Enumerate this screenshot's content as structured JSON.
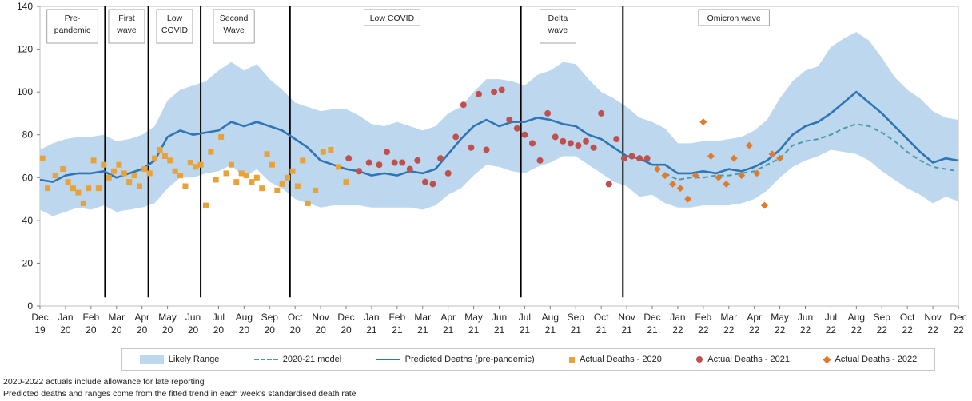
{
  "chart_data": {
    "type": "line",
    "ylim": [
      0,
      140
    ],
    "yticks": [
      0,
      20,
      40,
      60,
      80,
      100,
      120,
      140
    ],
    "x_tick_labels": [
      [
        "Dec",
        "19"
      ],
      [
        "Jan",
        "20"
      ],
      [
        "Feb",
        "20"
      ],
      [
        "Mar",
        "20"
      ],
      [
        "Apr",
        "20"
      ],
      [
        "May",
        "20"
      ],
      [
        "Jun",
        "20"
      ],
      [
        "Jul",
        "20"
      ],
      [
        "Aug",
        "20"
      ],
      [
        "Sep",
        "20"
      ],
      [
        "Oct",
        "20"
      ],
      [
        "Nov",
        "20"
      ],
      [
        "Dec",
        "20"
      ],
      [
        "Jan",
        "21"
      ],
      [
        "Feb",
        "21"
      ],
      [
        "Mar",
        "21"
      ],
      [
        "Apr",
        "21"
      ],
      [
        "May",
        "21"
      ],
      [
        "Jun",
        "21"
      ],
      [
        "Jul",
        "21"
      ],
      [
        "Aug",
        "21"
      ],
      [
        "Sep",
        "21"
      ],
      [
        "Oct",
        "21"
      ],
      [
        "Nov",
        "21"
      ],
      [
        "Dec",
        "21"
      ],
      [
        "Jan",
        "22"
      ],
      [
        "Feb",
        "22"
      ],
      [
        "Mar",
        "22"
      ],
      [
        "Apr",
        "22"
      ],
      [
        "May",
        "22"
      ],
      [
        "Jun",
        "22"
      ],
      [
        "Jul",
        "22"
      ],
      [
        "Aug",
        "22"
      ],
      [
        "Sep",
        "22"
      ],
      [
        "Oct",
        "22"
      ],
      [
        "Nov",
        "22"
      ],
      [
        "Dec",
        "22"
      ]
    ],
    "grid": false,
    "legend_position": "bottom",
    "legend": [
      "Likely Range",
      "2020-21 model",
      "Predicted Deaths (pre-pandemic)",
      "Actual Deaths - 2020",
      "Actual Deaths - 2021",
      "Actual Deaths - 2022"
    ],
    "x_index_note": "x values are month indices: 0 = Dec 19, 36 = Dec 22",
    "phase_dividers": [
      2.55,
      4.25,
      6.3,
      9.8,
      18.85,
      22.85
    ],
    "phases": [
      {
        "label": [
          "Pre-",
          "pandemic"
        ],
        "x": 1.27
      },
      {
        "label": [
          "First",
          "wave"
        ],
        "x": 3.4
      },
      {
        "label": [
          "Low",
          "COVID"
        ],
        "x": 5.28
      },
      {
        "label": [
          "Second",
          "Wave"
        ],
        "x": 7.6
      },
      {
        "label": [
          "Low COVID"
        ],
        "x": 13.8
      },
      {
        "label": [
          "Delta",
          "wave"
        ],
        "x": 20.3
      },
      {
        "label": [
          "Omicron wave"
        ],
        "x": 27.2
      }
    ],
    "series": [
      {
        "name": "Likely Range",
        "kind": "band",
        "color": "#bdd7ee",
        "x": [
          0,
          0.5,
          1,
          1.5,
          2,
          2.5,
          3,
          3.5,
          4,
          4.5,
          5,
          5.5,
          6,
          6.5,
          7,
          7.5,
          8,
          8.5,
          9,
          9.5,
          10,
          10.5,
          11,
          11.5,
          12,
          12.5,
          13,
          13.5,
          14,
          14.5,
          15,
          15.5,
          16,
          16.5,
          17,
          17.5,
          18,
          18.5,
          19,
          19.5,
          20,
          20.5,
          21,
          21.5,
          22,
          22.5,
          23,
          23.5,
          24,
          24.5,
          25,
          25.5,
          26,
          26.5,
          27,
          27.5,
          28,
          28.5,
          29,
          29.5,
          30,
          30.5,
          31,
          31.5,
          32,
          32.5,
          33,
          33.5,
          34,
          34.5,
          35,
          35.5,
          36
        ],
        "upper": [
          73,
          76,
          78,
          79,
          79,
          80,
          77,
          78,
          80,
          84,
          96,
          101,
          103,
          105,
          110,
          114,
          110,
          113,
          106,
          101,
          95,
          93,
          91,
          92,
          92,
          89,
          85,
          84,
          86,
          84,
          82,
          84,
          90,
          93,
          100,
          106,
          106,
          105,
          103,
          108,
          110,
          114,
          113,
          106,
          100,
          97,
          93,
          88,
          86,
          83,
          76,
          76,
          77,
          77,
          78,
          79,
          82,
          87,
          97,
          105,
          110,
          112,
          121,
          125,
          128,
          124,
          116,
          107,
          101,
          97,
          91,
          88,
          87
        ],
        "lower": [
          45,
          42,
          44,
          46,
          45,
          47,
          44,
          45,
          46,
          48,
          55,
          60,
          60,
          62,
          63,
          66,
          60,
          64,
          58,
          55,
          50,
          48,
          46,
          47,
          47,
          47,
          46,
          46,
          46,
          46,
          45,
          47,
          52,
          55,
          61,
          66,
          65,
          63,
          62,
          65,
          67,
          70,
          70,
          66,
          62,
          58,
          56,
          51,
          52,
          48,
          46,
          46,
          47,
          47,
          47,
          48,
          50,
          54,
          60,
          65,
          68,
          70,
          73,
          72,
          71,
          68,
          63,
          59,
          55,
          52,
          48,
          51,
          49
        ]
      },
      {
        "name": "Predicted Deaths (pre-pandemic)",
        "kind": "line",
        "color": "#2e75b6",
        "x": [
          0,
          0.5,
          1,
          1.5,
          2,
          2.5,
          3,
          3.5,
          4,
          4.5,
          5,
          5.5,
          6,
          6.5,
          7,
          7.5,
          8,
          8.5,
          9,
          9.5,
          10,
          10.5,
          11,
          11.5,
          12,
          12.5,
          13,
          13.5,
          14,
          14.5,
          15,
          15.5,
          16,
          16.5,
          17,
          17.5,
          18,
          18.5,
          19,
          19.5,
          20,
          20.5,
          21,
          21.5,
          22,
          22.5,
          23,
          23.5,
          24,
          24.5,
          25,
          25.5,
          26,
          26.5,
          27,
          27.5,
          28,
          28.5,
          29,
          29.5,
          30,
          30.5,
          31,
          31.5,
          32,
          32.5,
          33,
          33.5,
          34,
          34.5,
          35,
          35.5,
          36
        ],
        "values": [
          59,
          58,
          61,
          62,
          62,
          63,
          60,
          62,
          64,
          68,
          79,
          82,
          80,
          81,
          82,
          86,
          84,
          86,
          84,
          82,
          78,
          74,
          68,
          66,
          64,
          63,
          61,
          62,
          61,
          63,
          62,
          64,
          71,
          78,
          84,
          87,
          84,
          86,
          86,
          88,
          87,
          85,
          84,
          80,
          78,
          74,
          70,
          69,
          66,
          66,
          62,
          62,
          63,
          62,
          64,
          63,
          65,
          68,
          73,
          80,
          84,
          86,
          90,
          95,
          100,
          95,
          90,
          84,
          78,
          72,
          67,
          69,
          68
        ]
      },
      {
        "name": "2020-21 model",
        "kind": "dashed",
        "color": "#4a9aa8",
        "x": [
          24.5,
          25,
          25.5,
          26,
          26.5,
          27,
          27.5,
          28,
          28.5,
          29,
          29.5,
          30,
          30.5,
          31,
          31.5,
          32,
          32.5,
          33,
          33.5,
          34,
          34.5,
          35,
          35.5,
          36
        ],
        "values": [
          62,
          59,
          60,
          60,
          61,
          61,
          62,
          63,
          66,
          69,
          75,
          77,
          78,
          80,
          83,
          85,
          84,
          81,
          77,
          72,
          68,
          65,
          64,
          63
        ]
      },
      {
        "name": "Actual Deaths - 2020",
        "kind": "square",
        "color": "#e8a23a",
        "x": [
          0.1,
          0.3,
          0.6,
          0.9,
          1.1,
          1.3,
          1.5,
          1.7,
          1.9,
          2.1,
          2.3,
          2.5,
          2.7,
          2.9,
          3.1,
          3.3,
          3.5,
          3.7,
          3.9,
          4.1,
          4.3,
          4.5,
          4.7,
          4.9,
          5.1,
          5.3,
          5.5,
          5.7,
          5.9,
          6.1,
          6.3,
          6.5,
          6.7,
          6.9,
          7.1,
          7.3,
          7.5,
          7.7,
          7.9,
          8.1,
          8.3,
          8.5,
          8.7,
          8.9,
          9.1,
          9.3,
          9.5,
          9.7,
          9.9,
          10.1,
          10.3,
          10.5,
          10.8,
          11.1,
          11.4,
          11.7,
          12
        ],
        "values": [
          69,
          55,
          61,
          64,
          58,
          55,
          53,
          48,
          55,
          68,
          55,
          66,
          60,
          63,
          66,
          62,
          58,
          61,
          56,
          64,
          62,
          69,
          73,
          70,
          68,
          63,
          61,
          56,
          67,
          65,
          66,
          47,
          72,
          59,
          79,
          62,
          66,
          58,
          62,
          61,
          58,
          60,
          55,
          71,
          66,
          54,
          57,
          60,
          63,
          56,
          68,
          48,
          54,
          72,
          73,
          65,
          58
        ]
      },
      {
        "name": "Actual Deaths - 2021",
        "kind": "circle",
        "color": "#c0504d",
        "x": [
          12.1,
          12.5,
          12.9,
          13.3,
          13.6,
          13.9,
          14.2,
          14.5,
          14.8,
          15.1,
          15.4,
          15.7,
          16,
          16.3,
          16.6,
          16.9,
          17.2,
          17.5,
          17.8,
          18.1,
          18.4,
          18.7,
          19,
          19.3,
          19.6,
          19.9,
          20.2,
          20.5,
          20.8,
          21.1,
          21.4,
          21.7,
          22,
          22.3,
          22.6,
          22.9,
          23.2,
          23.5,
          23.8
        ],
        "values": [
          69,
          63,
          67,
          66,
          72,
          67,
          67,
          64,
          68,
          58,
          57,
          69,
          62,
          79,
          94,
          74,
          99,
          73,
          100,
          101,
          87,
          83,
          80,
          76,
          68,
          90,
          79,
          77,
          76,
          75,
          77,
          74,
          90,
          57,
          78,
          69,
          70,
          69,
          69
        ]
      },
      {
        "name": "Actual Deaths - 2022",
        "kind": "diamond",
        "color": "#e07a2c",
        "x": [
          24.2,
          24.5,
          24.8,
          25.1,
          25.4,
          25.7,
          26,
          26.3,
          26.6,
          26.9,
          27.2,
          27.5,
          27.8,
          28.1,
          28.4,
          28.7,
          29
        ],
        "values": [
          64,
          61,
          57,
          55,
          50,
          61,
          86,
          70,
          60,
          57,
          69,
          61,
          75,
          62,
          47,
          71,
          69
        ]
      }
    ]
  },
  "legend": {
    "band_label": "Likely Range",
    "model_label": "2020-21 model",
    "predicted_label": "Predicted Deaths (pre-pandemic)",
    "actual2020_label": "Actual Deaths - 2020",
    "actual2021_label": "Actual Deaths - 2021",
    "actual2022_label": "Actual Deaths - 2022"
  },
  "footnotes": {
    "line1": "2020-2022 actuals include allowance for late reporting",
    "line2": "Predicted deaths and ranges come from the fitted trend in each week's standardised death rate"
  }
}
